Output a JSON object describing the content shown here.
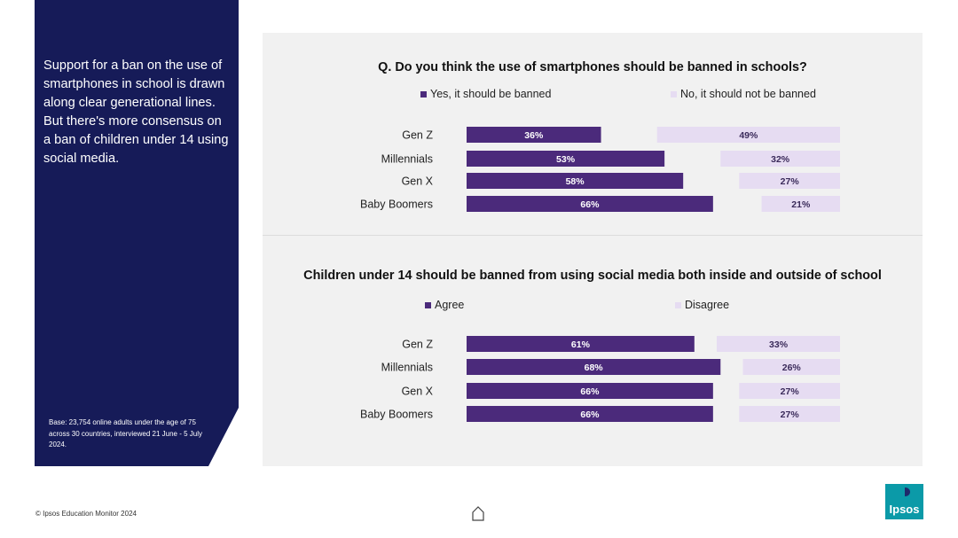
{
  "sidebar": {
    "text": "Support for a ban on the use of smartphones in school is drawn along clear generational lines. But there's more consensus on a ban of children under 14 using social media.",
    "base": "Base: 23,754 online adults under the age of 75 across 30 countries, interviewed 21 June - 5 July 2024."
  },
  "footer": {
    "copyright": "© Ipsos Education Monitor 2024"
  },
  "logo": {
    "text": "Ipsos"
  },
  "colors": {
    "primary": "#4b2a7b",
    "secondary": "#e6dcf2",
    "sidebar": "#161b58",
    "panel": "#f1f1f1"
  },
  "chart_data": [
    {
      "type": "bar",
      "title": "Q. Do you think the use of smartphones should be banned in schools?",
      "legend": [
        "Yes, it should be banned",
        "No, it should not be banned"
      ],
      "categories": [
        "Gen Z",
        "Millennials",
        "Gen X",
        "Baby Boomers"
      ],
      "series": [
        {
          "name": "Yes, it should be banned",
          "values": [
            36,
            53,
            58,
            66
          ],
          "labels": [
            "36%",
            "53%",
            "58%",
            "66%"
          ]
        },
        {
          "name": "No, it should not be banned",
          "values": [
            49,
            32,
            27,
            21
          ],
          "labels": [
            "49%",
            "32%",
            "27%",
            "21%"
          ]
        }
      ],
      "xlim": [
        0,
        100
      ]
    },
    {
      "type": "bar",
      "title": "Children under 14 should be banned from using social media both inside and outside of school",
      "legend": [
        "Agree",
        "Disagree"
      ],
      "categories": [
        "Gen Z",
        "Millennials",
        "Gen X",
        "Baby Boomers"
      ],
      "series": [
        {
          "name": "Agree",
          "values": [
            61,
            68,
            66,
            66
          ],
          "labels": [
            "61%",
            "68%",
            "66%",
            "66%"
          ]
        },
        {
          "name": "Disagree",
          "values": [
            33,
            26,
            27,
            27
          ],
          "labels": [
            "33%",
            "26%",
            "27%",
            "27%"
          ]
        }
      ],
      "xlim": [
        0,
        100
      ]
    }
  ]
}
